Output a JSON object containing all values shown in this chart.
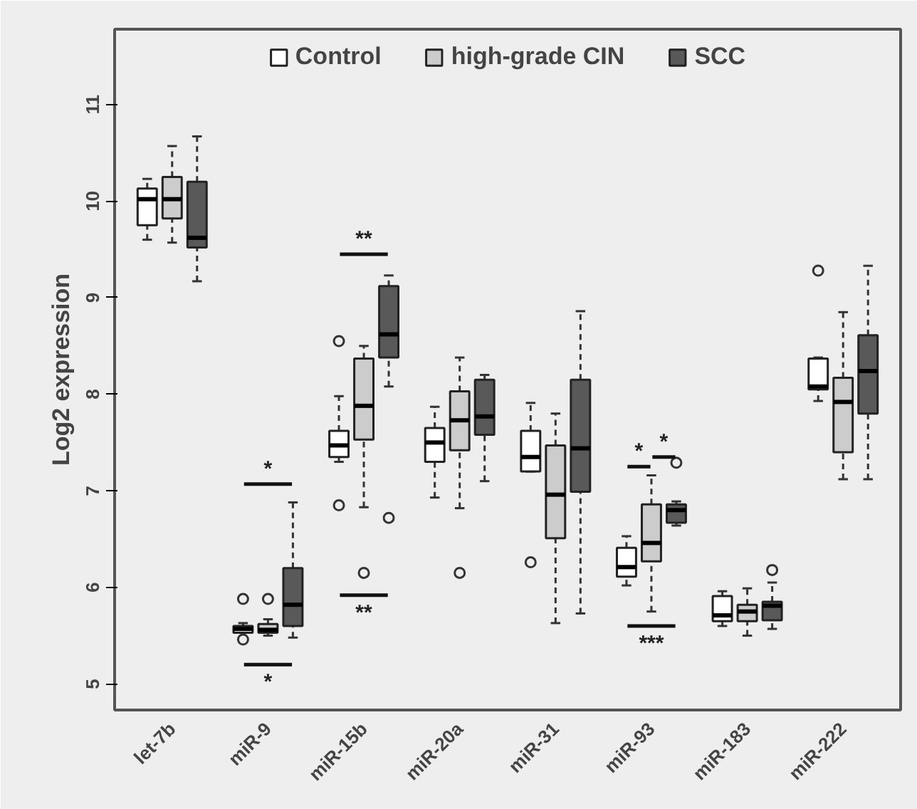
{
  "chart_data": {
    "type": "box",
    "ylabel": "Log2 expression",
    "categories": [
      "let-7b",
      "miR-9",
      "miR-15b",
      "miR-20a",
      "miR-31",
      "miR-93",
      "miR-183",
      "miR-222"
    ],
    "ylim": [
      4.73,
      11.78
    ],
    "yticks": [
      5,
      6,
      7,
      8,
      9,
      10,
      11
    ],
    "grid": false,
    "legend": "top",
    "series": [
      {
        "name": "Control",
        "color": "#ffffff",
        "boxes": [
          {
            "low": 9.6,
            "q1": 9.75,
            "median": 10.02,
            "q3": 10.13,
            "high": 10.23
          },
          {
            "low": 5.53,
            "q1": 5.53,
            "median": 5.57,
            "q3": 5.6,
            "high": 5.63,
            "outliers": [
              5.88,
              5.46
            ]
          },
          {
            "low": 7.3,
            "q1": 7.35,
            "median": 7.47,
            "q3": 7.62,
            "high": 7.98,
            "outliers": [
              6.85,
              8.55
            ]
          },
          {
            "low": 6.93,
            "q1": 7.3,
            "median": 7.5,
            "q3": 7.65,
            "high": 7.87
          },
          {
            "low": 7.2,
            "q1": 7.2,
            "median": 7.35,
            "q3": 7.62,
            "high": 7.91,
            "outliers": [
              6.26
            ]
          },
          {
            "low": 6.02,
            "q1": 6.11,
            "median": 6.21,
            "q3": 6.41,
            "high": 6.53
          },
          {
            "low": 5.6,
            "q1": 5.65,
            "median": 5.71,
            "q3": 5.91,
            "high": 5.96
          },
          {
            "low": 7.93,
            "q1": 8.05,
            "median": 8.08,
            "q3": 8.37,
            "high": 8.38,
            "outliers": [
              9.28
            ]
          }
        ]
      },
      {
        "name": "high-grade CIN",
        "color": "#cccccc",
        "boxes": [
          {
            "low": 9.57,
            "q1": 9.82,
            "median": 10.02,
            "q3": 10.25,
            "high": 10.57
          },
          {
            "low": 5.5,
            "q1": 5.53,
            "median": 5.56,
            "q3": 5.62,
            "high": 5.67,
            "outliers": [
              5.88
            ]
          },
          {
            "low": 6.83,
            "q1": 7.53,
            "median": 7.88,
            "q3": 8.37,
            "high": 8.5,
            "outliers": [
              6.15
            ]
          },
          {
            "low": 6.82,
            "q1": 7.42,
            "median": 7.73,
            "q3": 8.03,
            "high": 8.38,
            "outliers": [
              6.15
            ]
          },
          {
            "low": 5.63,
            "q1": 6.51,
            "median": 6.96,
            "q3": 7.47,
            "high": 7.8
          },
          {
            "low": 5.75,
            "q1": 6.27,
            "median": 6.46,
            "q3": 6.86,
            "high": 7.16
          },
          {
            "low": 5.5,
            "q1": 5.65,
            "median": 5.75,
            "q3": 5.82,
            "high": 5.99
          },
          {
            "low": 7.12,
            "q1": 7.4,
            "median": 7.92,
            "q3": 8.17,
            "high": 8.85
          }
        ]
      },
      {
        "name": "SCC",
        "color": "#595959",
        "boxes": [
          {
            "low": 9.17,
            "q1": 9.52,
            "median": 9.62,
            "q3": 10.2,
            "high": 10.67
          },
          {
            "low": 5.48,
            "q1": 5.6,
            "median": 5.82,
            "q3": 6.2,
            "high": 6.88
          },
          {
            "low": 8.08,
            "q1": 8.38,
            "median": 8.62,
            "q3": 9.12,
            "high": 9.23,
            "outliers": [
              6.72
            ]
          },
          {
            "low": 7.1,
            "q1": 7.58,
            "median": 7.77,
            "q3": 8.15,
            "high": 8.2
          },
          {
            "low": 5.73,
            "q1": 6.99,
            "median": 7.44,
            "q3": 8.15,
            "high": 8.86
          },
          {
            "low": 6.64,
            "q1": 6.67,
            "median": 6.8,
            "q3": 6.86,
            "high": 6.89,
            "outliers": [
              7.29
            ]
          },
          {
            "low": 5.57,
            "q1": 5.66,
            "median": 5.81,
            "q3": 5.85,
            "high": 6.05,
            "outliers": [
              6.18
            ]
          },
          {
            "low": 7.12,
            "q1": 7.8,
            "median": 8.24,
            "q3": 8.61,
            "high": 9.33
          }
        ]
      }
    ],
    "annotations": [
      "*",
      "*",
      "**",
      "**",
      "*",
      "*",
      "***"
    ]
  }
}
